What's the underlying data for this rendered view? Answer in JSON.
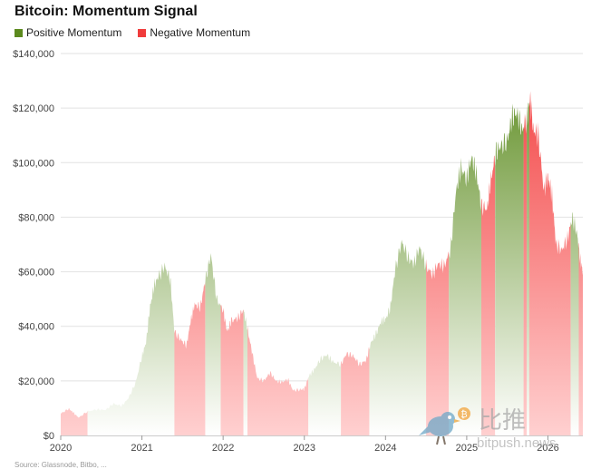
{
  "chart_data": {
    "type": "area",
    "title": "Bitcoin: Momentum Signal",
    "xlabel": "",
    "ylabel": "",
    "x_ticks": [
      "2020",
      "2021",
      "2022",
      "2023",
      "2024",
      "2025",
      "2026"
    ],
    "y_ticks": [
      "$0",
      "$20,000",
      "$40,000",
      "$60,000",
      "$80,000",
      "$100,000",
      "$120,000",
      "$140,000"
    ],
    "ylim": [
      0,
      140000
    ],
    "xlim": [
      2020.0,
      2026.43
    ],
    "grid": true,
    "legend": "top-left",
    "series_legend": [
      {
        "name": "Positive Momentum",
        "color": "#5c8a1e"
      },
      {
        "name": "Negative Momentum",
        "color": "#f03c3c"
      }
    ],
    "price": [
      [
        2020.0,
        8000
      ],
      [
        2020.1,
        9800
      ],
      [
        2020.15,
        8500
      ],
      [
        2020.22,
        6500
      ],
      [
        2020.33,
        8800
      ],
      [
        2020.45,
        9500
      ],
      [
        2020.55,
        9300
      ],
      [
        2020.65,
        11600
      ],
      [
        2020.75,
        10800
      ],
      [
        2020.83,
        13500
      ],
      [
        2020.92,
        19000
      ],
      [
        2021.0,
        29000
      ],
      [
        2021.05,
        34000
      ],
      [
        2021.1,
        47000
      ],
      [
        2021.15,
        55000
      ],
      [
        2021.2,
        58000
      ],
      [
        2021.28,
        62000
      ],
      [
        2021.35,
        57000
      ],
      [
        2021.4,
        38000
      ],
      [
        2021.48,
        35000
      ],
      [
        2021.55,
        33000
      ],
      [
        2021.6,
        42000
      ],
      [
        2021.65,
        48000
      ],
      [
        2021.72,
        47000
      ],
      [
        2021.78,
        57000
      ],
      [
        2021.85,
        66000
      ],
      [
        2021.92,
        50000
      ],
      [
        2022.0,
        46000
      ],
      [
        2022.05,
        38000
      ],
      [
        2022.1,
        42000
      ],
      [
        2022.18,
        43000
      ],
      [
        2022.25,
        46000
      ],
      [
        2022.3,
        39000
      ],
      [
        2022.36,
        30000
      ],
      [
        2022.42,
        21000
      ],
      [
        2022.5,
        20000
      ],
      [
        2022.58,
        23000
      ],
      [
        2022.65,
        20000
      ],
      [
        2022.72,
        19500
      ],
      [
        2022.8,
        20500
      ],
      [
        2022.86,
        16500
      ],
      [
        2022.95,
        16800
      ],
      [
        2023.0,
        17000
      ],
      [
        2023.06,
        22000
      ],
      [
        2023.12,
        24000
      ],
      [
        2023.2,
        28000
      ],
      [
        2023.28,
        29500
      ],
      [
        2023.35,
        27000
      ],
      [
        2023.45,
        26000
      ],
      [
        2023.52,
        30000
      ],
      [
        2023.6,
        29200
      ],
      [
        2023.68,
        26000
      ],
      [
        2023.76,
        27500
      ],
      [
        2023.82,
        34000
      ],
      [
        2023.88,
        37000
      ],
      [
        2023.95,
        42000
      ],
      [
        2024.0,
        42500
      ],
      [
        2024.06,
        47000
      ],
      [
        2024.12,
        61000
      ],
      [
        2024.2,
        71000
      ],
      [
        2024.28,
        65000
      ],
      [
        2024.35,
        63000
      ],
      [
        2024.42,
        69000
      ],
      [
        2024.5,
        62000
      ],
      [
        2024.58,
        59000
      ],
      [
        2024.65,
        63000
      ],
      [
        2024.72,
        62000
      ],
      [
        2024.8,
        68000
      ],
      [
        2024.87,
        90000
      ],
      [
        2024.93,
        98000
      ],
      [
        2025.0,
        94000
      ],
      [
        2025.06,
        102000
      ],
      [
        2025.12,
        96000
      ],
      [
        2025.18,
        84000
      ],
      [
        2025.25,
        83000
      ],
      [
        2025.3,
        94000
      ],
      [
        2025.36,
        104000
      ],
      [
        2025.42,
        106000
      ],
      [
        2025.5,
        108000
      ],
      [
        2025.56,
        117000
      ],
      [
        2025.62,
        118000
      ],
      [
        2025.68,
        112000
      ],
      [
        2025.74,
        116000
      ],
      [
        2025.78,
        124000
      ],
      [
        2025.82,
        112000
      ],
      [
        2025.88,
        110000
      ],
      [
        2025.95,
        90000
      ],
      [
        2026.0,
        95000
      ],
      [
        2026.05,
        88000
      ],
      [
        2026.1,
        70000
      ],
      [
        2026.17,
        68000
      ],
      [
        2026.24,
        72000
      ],
      [
        2026.3,
        80000
      ],
      [
        2026.36,
        74000
      ],
      [
        2026.4,
        64000
      ],
      [
        2026.43,
        60000
      ]
    ],
    "segments": [
      {
        "start": 2020.0,
        "end": 2020.33,
        "momentum": "negative"
      },
      {
        "start": 2020.33,
        "end": 2021.4,
        "momentum": "positive"
      },
      {
        "start": 2021.4,
        "end": 2021.78,
        "momentum": "negative"
      },
      {
        "start": 2021.78,
        "end": 2021.97,
        "momentum": "positive"
      },
      {
        "start": 2021.97,
        "end": 2022.25,
        "momentum": "negative"
      },
      {
        "start": 2022.25,
        "end": 2022.3,
        "momentum": "positive"
      },
      {
        "start": 2022.3,
        "end": 2023.05,
        "momentum": "negative"
      },
      {
        "start": 2023.05,
        "end": 2023.45,
        "momentum": "positive"
      },
      {
        "start": 2023.45,
        "end": 2023.8,
        "momentum": "negative"
      },
      {
        "start": 2023.8,
        "end": 2024.5,
        "momentum": "positive"
      },
      {
        "start": 2024.5,
        "end": 2024.78,
        "momentum": "negative"
      },
      {
        "start": 2024.78,
        "end": 2025.18,
        "momentum": "positive"
      },
      {
        "start": 2025.18,
        "end": 2025.35,
        "momentum": "negative"
      },
      {
        "start": 2025.35,
        "end": 2025.7,
        "momentum": "positive"
      },
      {
        "start": 2025.7,
        "end": 2025.74,
        "momentum": "negative"
      },
      {
        "start": 2025.74,
        "end": 2025.77,
        "momentum": "positive"
      },
      {
        "start": 2025.77,
        "end": 2026.28,
        "momentum": "negative"
      },
      {
        "start": 2026.28,
        "end": 2026.38,
        "momentum": "positive"
      },
      {
        "start": 2026.38,
        "end": 2026.43,
        "momentum": "negative"
      }
    ]
  },
  "watermark": {
    "text_cn": "比推",
    "text_url": "bitpush.news",
    "coin_symbol": "₿",
    "icon": "bird-icon"
  },
  "source": {
    "text": "Source: Glassnode, Bitbo, ..."
  }
}
